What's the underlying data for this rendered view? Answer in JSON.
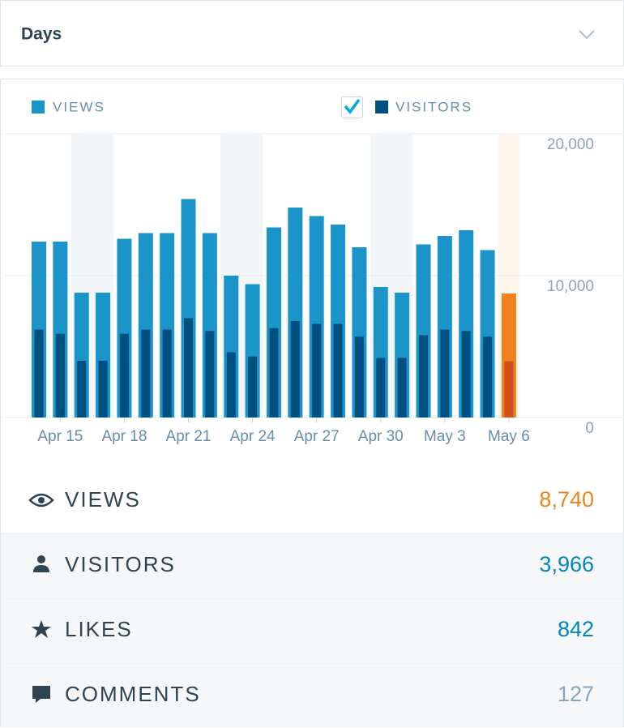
{
  "header": {
    "title": "Days"
  },
  "chart_data": {
    "type": "bar",
    "categories": [
      null,
      "Apr 15",
      null,
      null,
      "Apr 18",
      null,
      null,
      "Apr 21",
      null,
      null,
      "Apr 24",
      null,
      null,
      "Apr 27",
      null,
      null,
      "Apr 30",
      null,
      null,
      "May 3",
      null,
      null,
      "May 6"
    ],
    "series": [
      {
        "name": "VIEWS",
        "color": "#1a94c9",
        "highlight_color": "#f0821e",
        "values": [
          12400,
          12400,
          8800,
          8800,
          12600,
          13000,
          13000,
          15400,
          13000,
          10000,
          9400,
          13400,
          14800,
          14200,
          13600,
          12000,
          9200,
          8800,
          12200,
          12800,
          13200,
          11800,
          8740
        ]
      },
      {
        "name": "VISITORS",
        "color": "#00507f",
        "highlight_color": "#d54e21",
        "values": [
          6200,
          5900,
          4000,
          4000,
          5900,
          6200,
          6200,
          7000,
          6100,
          4600,
          4300,
          6300,
          6800,
          6600,
          6600,
          5700,
          4200,
          4200,
          5800,
          6200,
          6100,
          5700,
          3966
        ]
      }
    ],
    "ylim": [
      0,
      20000
    ],
    "yticks": [
      0,
      {
        "value": 10000,
        "label": "10,000"
      },
      {
        "value": 20000,
        "label": "20,000"
      }
    ],
    "grid": true
  },
  "stats": [
    {
      "label": "VIEWS",
      "value": "8,740",
      "color": "#f0821e"
    },
    {
      "label": "VISITORS",
      "value": "3,966",
      "color": "#0087be"
    },
    {
      "label": "LIKES",
      "value": "842",
      "color": "#0087be"
    },
    {
      "label": "COMMENTS",
      "value": "127",
      "color": "#87a6bc"
    }
  ]
}
